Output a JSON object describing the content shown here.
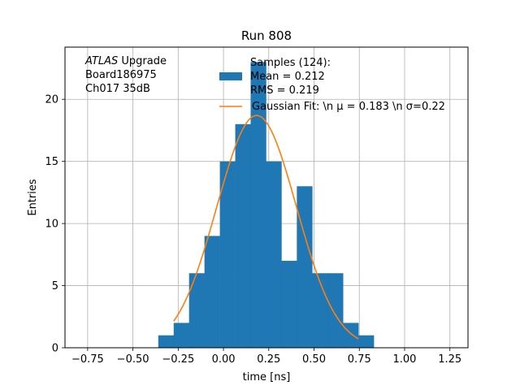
{
  "chart_data": {
    "type": "bar",
    "title": "Run 808",
    "xlabel": "time [ns]",
    "ylabel": "Entries",
    "xlim": [
      -0.875,
      1.35
    ],
    "ylim": [
      0,
      24.2
    ],
    "grid": true,
    "xticks": [
      -0.75,
      -0.5,
      -0.25,
      0.0,
      0.25,
      0.5,
      0.75,
      1.0,
      1.25
    ],
    "xtick_labels": [
      "−0.75",
      "−0.50",
      "−0.25",
      "0.00",
      "0.25",
      "0.50",
      "0.75",
      "1.00",
      "1.25"
    ],
    "yticks": [
      0,
      5,
      10,
      15,
      20
    ],
    "ytick_labels": [
      "0",
      "5",
      "10",
      "15",
      "20"
    ],
    "histogram": {
      "bin_edges": [
        -0.36,
        -0.275,
        -0.19,
        -0.105,
        -0.02,
        0.065,
        0.15,
        0.235,
        0.32,
        0.405,
        0.49,
        0.575,
        0.66,
        0.745,
        0.83
      ],
      "counts": [
        1,
        2,
        6,
        9,
        15,
        18,
        23,
        15,
        7,
        13,
        6,
        6,
        2,
        1
      ],
      "color": "#1f77b4"
    },
    "fit": {
      "color": "#ff7f0e",
      "x_range": [
        -0.275,
        0.745
      ],
      "mu": 0.183,
      "sigma": 0.22,
      "amplitude": 18.7
    },
    "annotation": {
      "lines": [
        {
          "italic": "ATLAS",
          "text": " Upgrade"
        },
        {
          "italic": "",
          "text": " Board186975"
        },
        {
          "italic": "",
          "text": " Ch017 35dB"
        }
      ]
    },
    "legend": {
      "placement": "top-center",
      "entries": [
        {
          "kind": "patch",
          "lines": [
            "Samples (124):",
            " Mean = 0.212",
            " RMS = 0.219"
          ]
        },
        {
          "kind": "line",
          "lines": [
            "Gaussian Fit: \\n μ = 0.183 \\n σ=0.22"
          ]
        }
      ]
    }
  }
}
